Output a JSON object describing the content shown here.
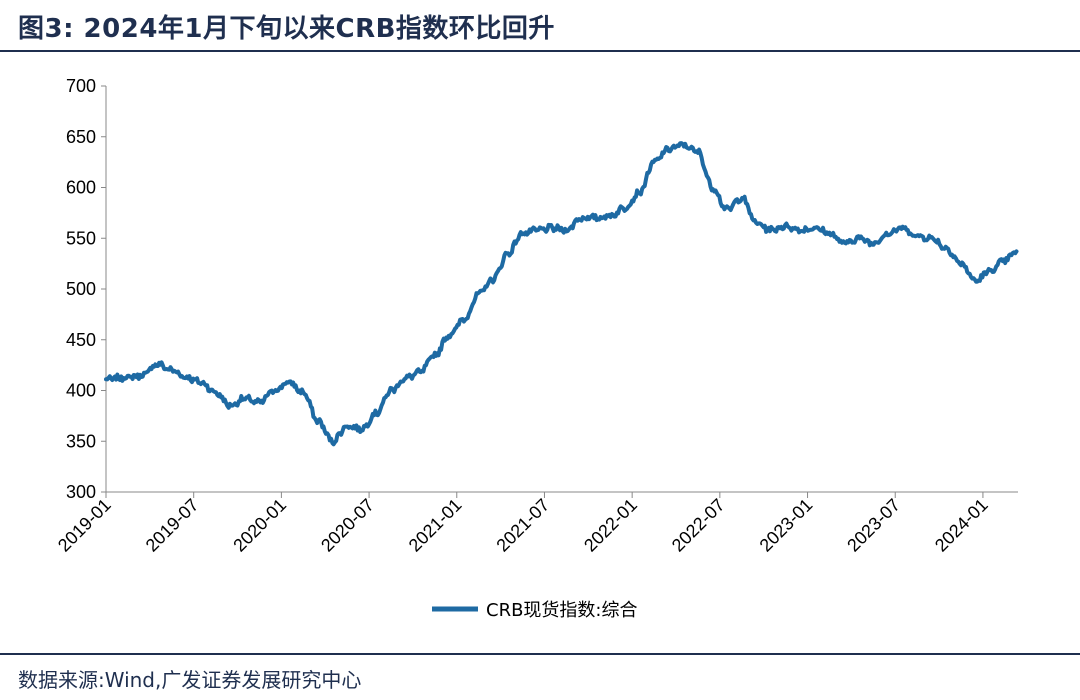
{
  "header": {
    "title": "图3:  2024年1月下旬以来CRB指数环比回升"
  },
  "footer": {
    "source": "数据来源:Wind,广发证券发展研究中心"
  },
  "colors": {
    "line": "#1e6aa3",
    "rule": "#1f2f4f"
  },
  "chart_data": {
    "type": "line",
    "title": "",
    "xlabel": "",
    "ylabel": "",
    "ylim": [
      300,
      700
    ],
    "y_ticks": [
      "300",
      "350",
      "400",
      "450",
      "500",
      "550",
      "600",
      "650",
      "700"
    ],
    "x_range": [
      "2019-01",
      "2024-03"
    ],
    "x_ticks": [
      "2019-01",
      "2019-07",
      "2020-01",
      "2020-07",
      "2021-01",
      "2021-07",
      "2022-01",
      "2022-07",
      "2023-01",
      "2023-07",
      "2024-01"
    ],
    "legend_position": "bottom-center",
    "grid": false,
    "series": [
      {
        "name": "CRB现货指数:综合",
        "x": [
          "2019-01",
          "2019-02",
          "2019-03",
          "2019-04",
          "2019-05",
          "2019-06",
          "2019-07",
          "2019-08",
          "2019-09",
          "2019-10",
          "2019-11",
          "2019-12",
          "2020-01",
          "2020-02",
          "2020-03",
          "2020-04",
          "2020-05",
          "2020-06",
          "2020-07",
          "2020-08",
          "2020-09",
          "2020-10",
          "2020-11",
          "2020-12",
          "2021-01",
          "2021-02",
          "2021-03",
          "2021-04",
          "2021-05",
          "2021-06",
          "2021-07",
          "2021-08",
          "2021-09",
          "2021-10",
          "2021-11",
          "2021-12",
          "2022-01",
          "2022-02",
          "2022-03",
          "2022-04",
          "2022-05",
          "2022-06",
          "2022-07",
          "2022-08",
          "2022-09",
          "2022-10",
          "2022-11",
          "2022-12",
          "2023-01",
          "2023-02",
          "2023-03",
          "2023-04",
          "2023-05",
          "2023-06",
          "2023-07",
          "2023-08",
          "2023-09",
          "2023-10",
          "2023-11",
          "2023-12",
          "2024-01",
          "2024-02",
          "2024-03"
        ],
        "values": [
          411,
          413,
          415,
          426,
          420,
          413,
          408,
          398,
          385,
          392,
          388,
          400,
          408,
          398,
          370,
          350,
          365,
          362,
          378,
          400,
          412,
          418,
          435,
          455,
          470,
          495,
          510,
          535,
          555,
          558,
          560,
          558,
          570,
          570,
          572,
          580,
          595,
          625,
          638,
          642,
          635,
          600,
          578,
          590,
          565,
          558,
          562,
          558,
          560,
          555,
          545,
          550,
          545,
          555,
          560,
          552,
          550,
          540,
          525,
          508,
          518,
          528,
          537
        ]
      }
    ]
  }
}
